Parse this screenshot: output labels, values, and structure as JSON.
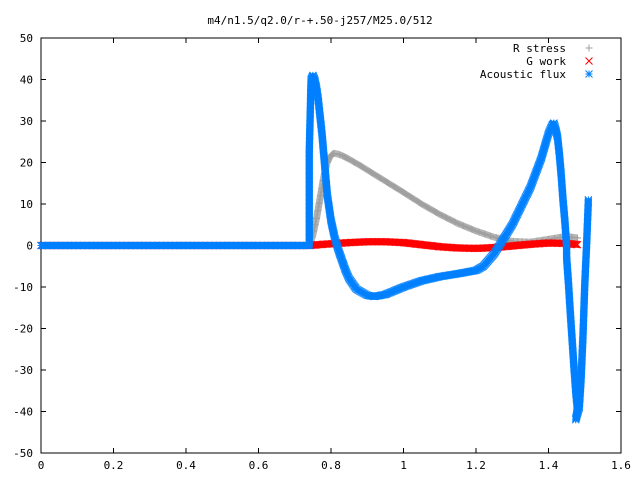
{
  "chart_data": {
    "type": "scatter",
    "title": "m4/n1.5/q2.0/r-+.50-j257/M25.0/512",
    "xlabel": "",
    "ylabel": "",
    "xlim": [
      0,
      1.6
    ],
    "ylim": [
      -50,
      50
    ],
    "xticks": [
      "0",
      "0.2",
      "0.4",
      "0.6",
      "0.8",
      "1",
      "1.2",
      "1.4",
      "1.6"
    ],
    "yticks": [
      "50",
      "40",
      "30",
      "20",
      "10",
      "0",
      "-10",
      "-20",
      "-30",
      "-40",
      "-50"
    ],
    "grid": false,
    "legend_position": "top-right",
    "series": [
      {
        "name": "R stress",
        "marker": "plus",
        "color": "#a0a0a0",
        "points": [
          [
            0,
            0
          ],
          [
            0.74,
            0
          ],
          [
            0.745,
            1
          ],
          [
            0.75,
            2.5
          ],
          [
            0.755,
            4.5
          ],
          [
            0.76,
            6.5
          ],
          [
            0.765,
            9
          ],
          [
            0.77,
            11.5
          ],
          [
            0.775,
            14
          ],
          [
            0.78,
            16.5
          ],
          [
            0.785,
            18.5
          ],
          [
            0.79,
            20
          ],
          [
            0.795,
            21
          ],
          [
            0.8,
            21.7
          ],
          [
            0.805,
            22.1
          ],
          [
            0.81,
            22.2
          ],
          [
            0.82,
            22
          ],
          [
            0.83,
            21.7
          ],
          [
            0.85,
            20.8
          ],
          [
            0.88,
            19.3
          ],
          [
            0.9,
            18.2
          ],
          [
            0.95,
            15.5
          ],
          [
            1.0,
            12.8
          ],
          [
            1.05,
            10
          ],
          [
            1.1,
            7.5
          ],
          [
            1.15,
            5.3
          ],
          [
            1.2,
            3.5
          ],
          [
            1.25,
            2
          ],
          [
            1.3,
            1
          ],
          [
            1.35,
            0.8
          ],
          [
            1.4,
            1.5
          ],
          [
            1.45,
            2.2
          ],
          [
            1.48,
            1.8
          ]
        ]
      },
      {
        "name": "G work",
        "marker": "cross",
        "color": "#ff0000",
        "points": [
          [
            0,
            0
          ],
          [
            0.74,
            0
          ],
          [
            0.78,
            0.3
          ],
          [
            0.85,
            0.7
          ],
          [
            0.9,
            0.9
          ],
          [
            0.95,
            0.9
          ],
          [
            1.0,
            0.7
          ],
          [
            1.05,
            0.2
          ],
          [
            1.1,
            -0.3
          ],
          [
            1.15,
            -0.6
          ],
          [
            1.2,
            -0.7
          ],
          [
            1.25,
            -0.5
          ],
          [
            1.3,
            -0.1
          ],
          [
            1.35,
            0.3
          ],
          [
            1.4,
            0.6
          ],
          [
            1.45,
            0.5
          ],
          [
            1.48,
            0.2
          ]
        ]
      },
      {
        "name": "Acoustic flux",
        "marker": "star",
        "color": "#0080ff",
        "points": [
          [
            0,
            0
          ],
          [
            0.74,
            0
          ],
          [
            0.74,
            22.5
          ],
          [
            0.745,
            40
          ],
          [
            0.75,
            41
          ],
          [
            0.755,
            40
          ],
          [
            0.76,
            38
          ],
          [
            0.765,
            35
          ],
          [
            0.77,
            31
          ],
          [
            0.775,
            27
          ],
          [
            0.78,
            22
          ],
          [
            0.785,
            17
          ],
          [
            0.79,
            12
          ],
          [
            0.8,
            6
          ],
          [
            0.81,
            2
          ],
          [
            0.82,
            -1
          ],
          [
            0.83,
            -3.5
          ],
          [
            0.84,
            -6
          ],
          [
            0.85,
            -8
          ],
          [
            0.87,
            -10.5
          ],
          [
            0.9,
            -12
          ],
          [
            0.92,
            -12.3
          ],
          [
            0.95,
            -11.8
          ],
          [
            1.0,
            -10
          ],
          [
            1.05,
            -8.5
          ],
          [
            1.1,
            -7.5
          ],
          [
            1.15,
            -6.8
          ],
          [
            1.2,
            -6
          ],
          [
            1.22,
            -5
          ],
          [
            1.25,
            -2
          ],
          [
            1.3,
            5
          ],
          [
            1.35,
            14
          ],
          [
            1.38,
            21
          ],
          [
            1.4,
            27
          ],
          [
            1.41,
            29
          ],
          [
            1.415,
            29.5
          ],
          [
            1.42,
            28
          ],
          [
            1.425,
            26
          ],
          [
            1.43,
            22
          ],
          [
            1.435,
            17
          ],
          [
            1.44,
            11
          ],
          [
            1.445,
            6
          ],
          [
            1.45,
            0
          ],
          [
            1.45,
            -3
          ],
          [
            1.455,
            -9
          ],
          [
            1.46,
            -16
          ],
          [
            1.465,
            -22.5
          ],
          [
            1.47,
            -29
          ],
          [
            1.475,
            -35
          ],
          [
            1.48,
            -39.5
          ],
          [
            1.475,
            -42
          ],
          [
            1.485,
            -39
          ],
          [
            1.49,
            -32
          ],
          [
            1.495,
            -22
          ],
          [
            1.5,
            -9.5
          ],
          [
            1.505,
            0
          ],
          [
            1.51,
            11
          ]
        ]
      }
    ]
  }
}
